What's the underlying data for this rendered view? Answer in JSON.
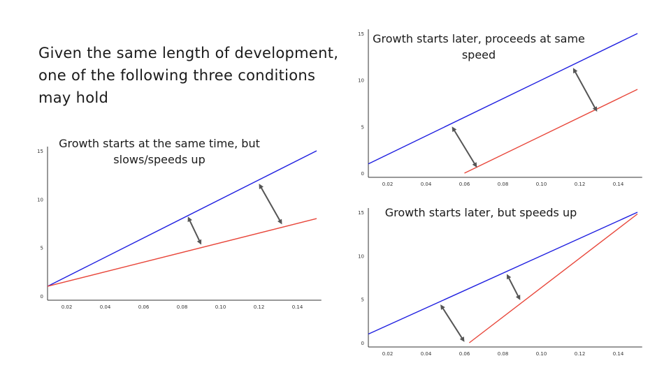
{
  "slide": {
    "heading": "Given the same length of development, one of the following three conditions may hold"
  },
  "colors": {
    "blue_line": "#1f1fe0",
    "red_line": "#e8463a",
    "arrow": "#555555",
    "axis": "#333333"
  },
  "chart_data": [
    {
      "type": "line",
      "title": "Growth starts at the same time, but slows/speeds up",
      "xlabel": "",
      "ylabel": "",
      "x_ticks": [
        "0.02",
        "0.04",
        "0.06",
        "0.08",
        "0.10",
        "0.12",
        "0.14"
      ],
      "y_ticks": [
        "0",
        "5",
        "10",
        "15"
      ],
      "xlim": [
        0.01,
        0.151
      ],
      "ylim": [
        0,
        15.5
      ],
      "grid": false,
      "series": [
        {
          "color": "#1f1fe0",
          "x": [
            0.01,
            0.15
          ],
          "y": [
            1,
            15
          ]
        },
        {
          "color": "#e8463a",
          "x": [
            0.01,
            0.15
          ],
          "y": [
            1,
            8
          ]
        }
      ],
      "arrows": [
        {
          "x1": 0.083,
          "y1": 8.2,
          "x2": 0.09,
          "y2": 5.3
        },
        {
          "x1": 0.12,
          "y1": 11.6,
          "x2": 0.132,
          "y2": 7.4
        }
      ]
    },
    {
      "type": "line",
      "title": "Growth starts later, proceeds at same speed",
      "xlabel": "",
      "ylabel": "",
      "x_ticks": [
        "0.02",
        "0.04",
        "0.06",
        "0.08",
        "0.10",
        "0.12",
        "0.14"
      ],
      "y_ticks": [
        "0",
        "5",
        "10",
        "15"
      ],
      "xlim": [
        0.01,
        0.151
      ],
      "ylim": [
        0,
        15.5
      ],
      "grid": false,
      "series": [
        {
          "color": "#1f1fe0",
          "x": [
            0.01,
            0.15
          ],
          "y": [
            1,
            15
          ]
        },
        {
          "color": "#e8463a",
          "x": [
            0.06,
            0.15
          ],
          "y": [
            0,
            9
          ]
        }
      ],
      "arrows": [
        {
          "x1": 0.0535,
          "y1": 5.0,
          "x2": 0.0665,
          "y2": 0.6
        },
        {
          "x1": 0.1165,
          "y1": 11.3,
          "x2": 0.129,
          "y2": 6.6
        }
      ]
    },
    {
      "type": "line",
      "title": "Growth starts later, but speeds up",
      "xlabel": "",
      "ylabel": "",
      "x_ticks": [
        "0.02",
        "0.04",
        "0.06",
        "0.08",
        "0.10",
        "0.12",
        "0.14"
      ],
      "y_ticks": [
        "0",
        "5",
        "10",
        "15"
      ],
      "xlim": [
        0.01,
        0.151
      ],
      "ylim": [
        0,
        15.5
      ],
      "grid": false,
      "series": [
        {
          "color": "#1f1fe0",
          "x": [
            0.01,
            0.15
          ],
          "y": [
            1,
            15
          ]
        },
        {
          "color": "#e8463a",
          "x": [
            0.0625,
            0.15
          ],
          "y": [
            0,
            14.8
          ]
        }
      ],
      "arrows": [
        {
          "x1": 0.0475,
          "y1": 4.4,
          "x2": 0.06,
          "y2": 0.1
        },
        {
          "x1": 0.082,
          "y1": 7.9,
          "x2": 0.089,
          "y2": 4.9
        }
      ]
    }
  ]
}
